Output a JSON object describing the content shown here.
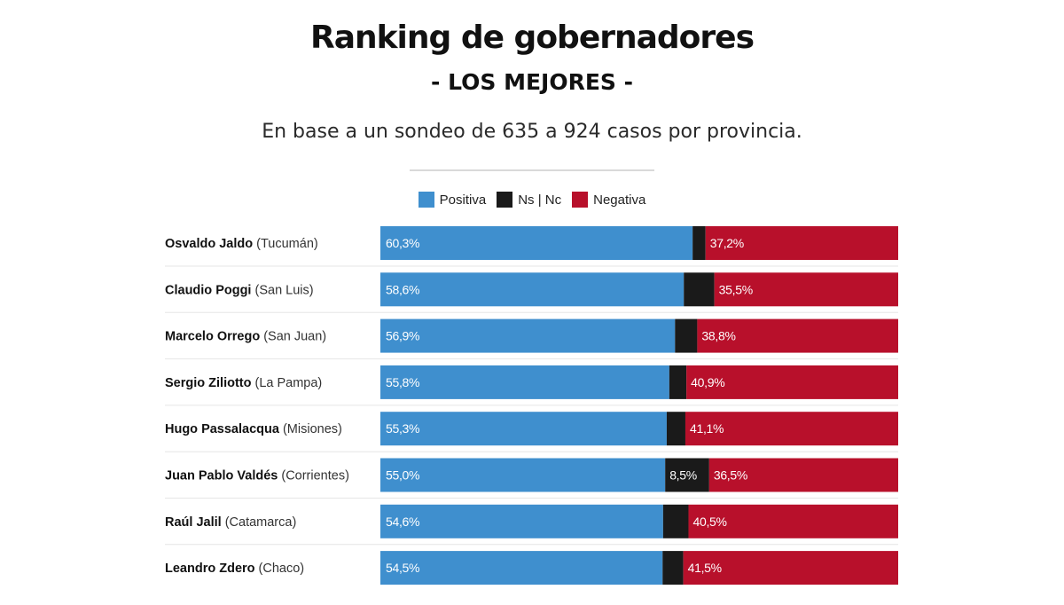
{
  "header": {
    "title": "Ranking de gobernadores",
    "subtitle": "- LOS MEJORES -",
    "description": "En base a un sondeo de 635 a 924 casos por provincia."
  },
  "colors": {
    "positive": "#3f8fce",
    "nsnc": "#1a1a1a",
    "negative": "#b8102b",
    "separator": "#e6e6e6"
  },
  "chart_data": {
    "type": "bar",
    "orientation": "horizontal-stacked-100",
    "legend": [
      "Positiva",
      "Ns | Nc",
      "Negativa"
    ],
    "legend_position": "top-center",
    "xlim": [
      0,
      100
    ],
    "rows": [
      {
        "name": "Osvaldo Jaldo",
        "province": "(Tucumán)",
        "positive": 60.3,
        "positive_label": "60,3%",
        "nsnc": 2.5,
        "nsnc_label": "",
        "negative": 37.2,
        "negative_label": "37,2%"
      },
      {
        "name": "Claudio Poggi",
        "province": "(San Luis)",
        "positive": 58.6,
        "positive_label": "58,6%",
        "nsnc": 5.9,
        "nsnc_label": "",
        "negative": 35.5,
        "negative_label": "35,5%"
      },
      {
        "name": "Marcelo Orrego",
        "province": "(San Juan)",
        "positive": 56.9,
        "positive_label": "56,9%",
        "nsnc": 4.3,
        "nsnc_label": "",
        "negative": 38.8,
        "negative_label": "38,8%"
      },
      {
        "name": "Sergio Ziliotto",
        "province": "(La Pampa)",
        "positive": 55.8,
        "positive_label": "55,8%",
        "nsnc": 3.3,
        "nsnc_label": "",
        "negative": 40.9,
        "negative_label": "40,9%"
      },
      {
        "name": "Hugo Passalacqua",
        "province": "(Misiones)",
        "positive": 55.3,
        "positive_label": "55,3%",
        "nsnc": 3.6,
        "nsnc_label": "",
        "negative": 41.1,
        "negative_label": "41,1%"
      },
      {
        "name": "Juan Pablo Valdés",
        "province": "(Corrientes)",
        "positive": 55.0,
        "positive_label": "55,0%",
        "nsnc": 8.5,
        "nsnc_label": "8,5%",
        "negative": 36.5,
        "negative_label": "36,5%"
      },
      {
        "name": "Raúl Jalil",
        "province": "(Catamarca)",
        "positive": 54.6,
        "positive_label": "54,6%",
        "nsnc": 4.9,
        "nsnc_label": "",
        "negative": 40.5,
        "negative_label": "40,5%"
      },
      {
        "name": "Leandro Zdero",
        "province": "(Chaco)",
        "positive": 54.5,
        "positive_label": "54,5%",
        "nsnc": 4.0,
        "nsnc_label": "",
        "negative": 41.5,
        "negative_label": "41,5%"
      }
    ]
  }
}
